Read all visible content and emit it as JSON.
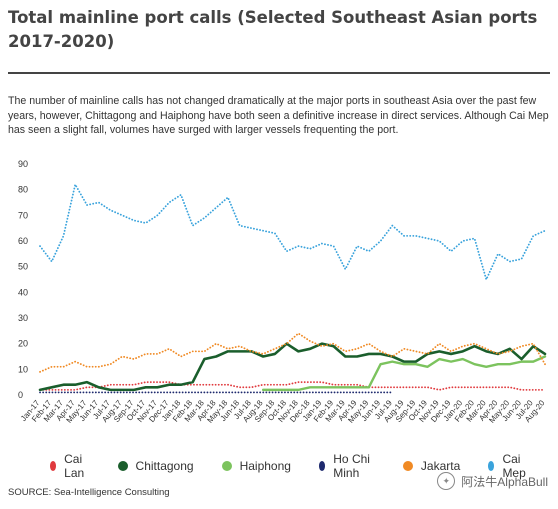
{
  "header": {
    "title": "Total mainline port calls (Selected Southeast Asian ports 2017-2020)",
    "description": "The number of mainline calls has not changed dramatically at the major ports in southeast Asia over the past few years, however, Chittagong and Haiphong have both seen a definitive increase in direct services. Although Cai Mep has seen a slight fall, volumes have surged with larger vessels frequenting the port."
  },
  "source": "SOURCE: Sea-Intelligence Consulting",
  "watermark": "阿法牛AlphaBull",
  "chart_data": {
    "type": "line",
    "title": "Total mainline port calls (Selected Southeast Asian ports 2017-2020)",
    "xlabel": "",
    "ylabel": "",
    "ylim": [
      0,
      90
    ],
    "yticks": [
      0,
      10,
      20,
      30,
      40,
      50,
      60,
      70,
      80,
      90
    ],
    "grid": false,
    "legend_position": "bottom",
    "categories": [
      "Jan-17",
      "Feb-17",
      "Mar-17",
      "Apr-17",
      "May-17",
      "Jun-17",
      "Jul-17",
      "Aug-17",
      "Sep-17",
      "Oct-17",
      "Nov-17",
      "Dec-17",
      "Jan-18",
      "Feb-18",
      "Mar-18",
      "Apr-18",
      "May-18",
      "Jun-18",
      "Jul-18",
      "Aug-18",
      "Sep-18",
      "Oct-18",
      "Nov-18",
      "Dec-18",
      "Jan-19",
      "Feb-19",
      "Mar-19",
      "Apr-19",
      "May-19",
      "Jun-19",
      "Jul-19",
      "Aug-19",
      "Sep-19",
      "Oct-19",
      "Nov-19",
      "Dec-19",
      "Jan-20",
      "Feb-20",
      "Mar-20",
      "Apr-20",
      "May-20",
      "Jun-20",
      "Jul-20",
      "Aug-20"
    ],
    "series": [
      {
        "name": "Cai Lan",
        "color": "#e03a3e",
        "style": "dotted",
        "values": [
          2,
          2,
          2,
          2,
          3,
          3,
          4,
          4,
          4,
          5,
          5,
          5,
          4,
          4,
          4,
          4,
          4,
          3,
          3,
          4,
          4,
          4,
          5,
          5,
          5,
          4,
          4,
          4,
          3,
          3,
          3,
          3,
          3,
          3,
          2,
          3,
          3,
          3,
          3,
          3,
          3,
          2,
          2,
          2
        ]
      },
      {
        "name": "Chittagong",
        "color": "#1a5e2c",
        "style": "solid",
        "values": [
          2,
          3,
          4,
          4,
          5,
          3,
          2,
          2,
          2,
          3,
          3,
          4,
          4,
          5,
          14,
          15,
          17,
          17,
          17,
          15,
          16,
          20,
          17,
          18,
          20,
          19,
          15,
          15,
          16,
          16,
          15,
          13,
          13,
          16,
          17,
          16,
          17,
          19,
          17,
          16,
          18,
          14,
          19,
          16
        ]
      },
      {
        "name": "Haiphong",
        "color": "#7cc35e",
        "style": "solid",
        "values": [
          null,
          null,
          null,
          null,
          null,
          null,
          null,
          null,
          null,
          null,
          null,
          null,
          null,
          null,
          null,
          null,
          null,
          null,
          null,
          2,
          2,
          2,
          2,
          3,
          3,
          3,
          3,
          3,
          3,
          12,
          13,
          12,
          12,
          11,
          14,
          13,
          14,
          12,
          11,
          12,
          12,
          13,
          13,
          15
        ]
      },
      {
        "name": "Ho Chi Minh",
        "color": "#1e2a6e",
        "style": "dotted",
        "values": [
          1,
          1,
          1,
          1,
          1,
          1,
          1,
          1,
          1,
          1,
          1,
          1,
          1,
          1,
          1,
          1,
          1,
          1,
          1,
          1,
          1,
          1,
          1,
          1,
          1,
          1,
          1,
          1,
          1,
          1,
          1,
          null,
          null,
          null,
          null,
          null,
          null,
          null,
          null,
          null,
          null,
          null,
          null,
          null
        ]
      },
      {
        "name": "Jakarta",
        "color": "#f08a24",
        "style": "dotted",
        "values": [
          9,
          11,
          11,
          13,
          11,
          11,
          12,
          15,
          14,
          16,
          16,
          18,
          15,
          17,
          17,
          20,
          18,
          19,
          17,
          16,
          18,
          20,
          24,
          21,
          19,
          20,
          17,
          18,
          20,
          17,
          15,
          18,
          17,
          16,
          20,
          17,
          19,
          20,
          18,
          16,
          17,
          19,
          20,
          12
        ]
      },
      {
        "name": "Cai Mep",
        "color": "#3aa3dc",
        "style": "dotted",
        "values": [
          58,
          52,
          62,
          82,
          74,
          75,
          72,
          70,
          68,
          67,
          70,
          75,
          78,
          66,
          69,
          73,
          77,
          66,
          65,
          64,
          63,
          56,
          58,
          57,
          59,
          58,
          49,
          58,
          56,
          60,
          66,
          62,
          62,
          61,
          60,
          56,
          60,
          61,
          45,
          55,
          52,
          53,
          62,
          64
        ]
      }
    ]
  }
}
